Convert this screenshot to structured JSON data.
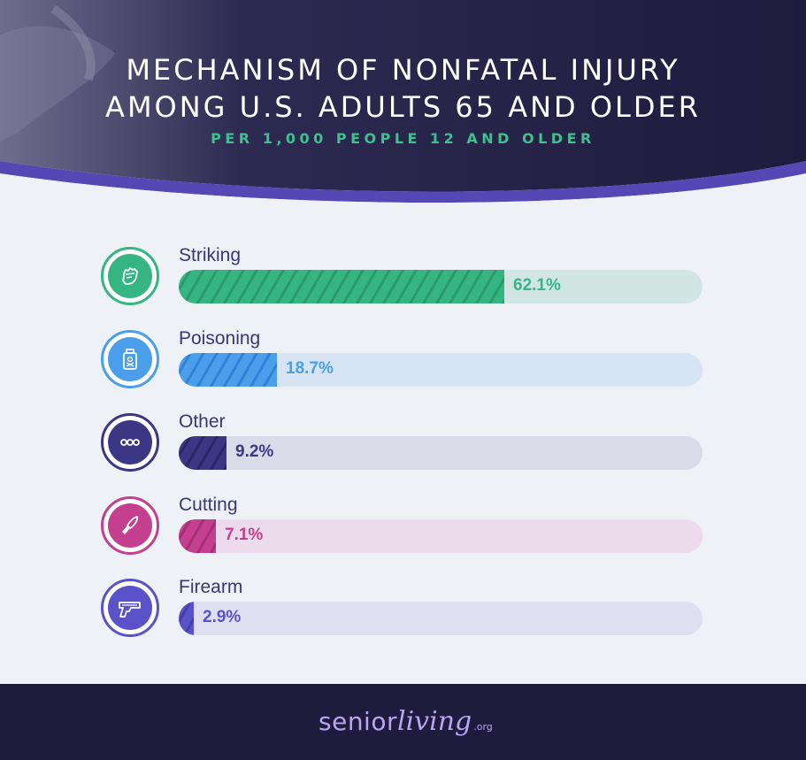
{
  "header": {
    "title_line1": "MECHANISM OF NONFATAL INJURY",
    "title_line2": "AMONG U.S. ADULTS 65 AND OLDER",
    "subtitle": "PER 1,000 PEOPLE 12 AND OLDER"
  },
  "colors": {
    "header_bg": "#1f1b3d",
    "band": "#5548b5",
    "footer_bg": "#1f1b3d"
  },
  "chart_data": {
    "type": "bar",
    "orientation": "horizontal",
    "title": "MECHANISM OF NONFATAL INJURY AMONG U.S. ADULTS 65 AND OLDER",
    "subtitle": "PER 1,000 PEOPLE 12 AND OLDER",
    "categories": [
      "Striking",
      "Poisoning",
      "Other",
      "Cutting",
      "Firearm"
    ],
    "values": [
      62.1,
      18.7,
      9.2,
      7.1,
      2.9
    ],
    "labels": [
      "62.1%",
      "18.7%",
      "9.2%",
      "7.1%",
      "2.9%"
    ],
    "xlim": [
      0,
      100
    ],
    "items": [
      {
        "label": "Striking",
        "value": 62.1,
        "value_label": "62.1%",
        "icon": "fist-icon",
        "color": "#35b581",
        "stripe": "#2a9a6c",
        "track": "#d1e6e3",
        "value_color": "#3ab487"
      },
      {
        "label": "Poisoning",
        "value": 18.7,
        "value_label": "18.7%",
        "icon": "poison-bottle-icon",
        "color": "#4b9eea",
        "stripe": "#3182d6",
        "track": "#d6e4f4",
        "value_color": "#4aa0e8"
      },
      {
        "label": "Other",
        "value": 9.2,
        "value_label": "9.2%",
        "icon": "dots-icon",
        "color": "#3c3785",
        "stripe": "#2b2766",
        "track": "#d9dbe9",
        "value_color": "#3c3785"
      },
      {
        "label": "Cutting",
        "value": 7.1,
        "value_label": "7.1%",
        "icon": "knife-icon",
        "color": "#c53f8f",
        "stripe": "#a42f73",
        "track": "#ecdbec",
        "value_color": "#c53f8f"
      },
      {
        "label": "Firearm",
        "value": 2.9,
        "value_label": "2.9%",
        "icon": "gun-icon",
        "color": "#5a52c9",
        "stripe": "#4640a8",
        "track": "#dfdff2",
        "value_color": "#5a52c9"
      }
    ]
  },
  "footer": {
    "logo_part1": "senior",
    "logo_part2": "living",
    "logo_part3": ".org"
  }
}
